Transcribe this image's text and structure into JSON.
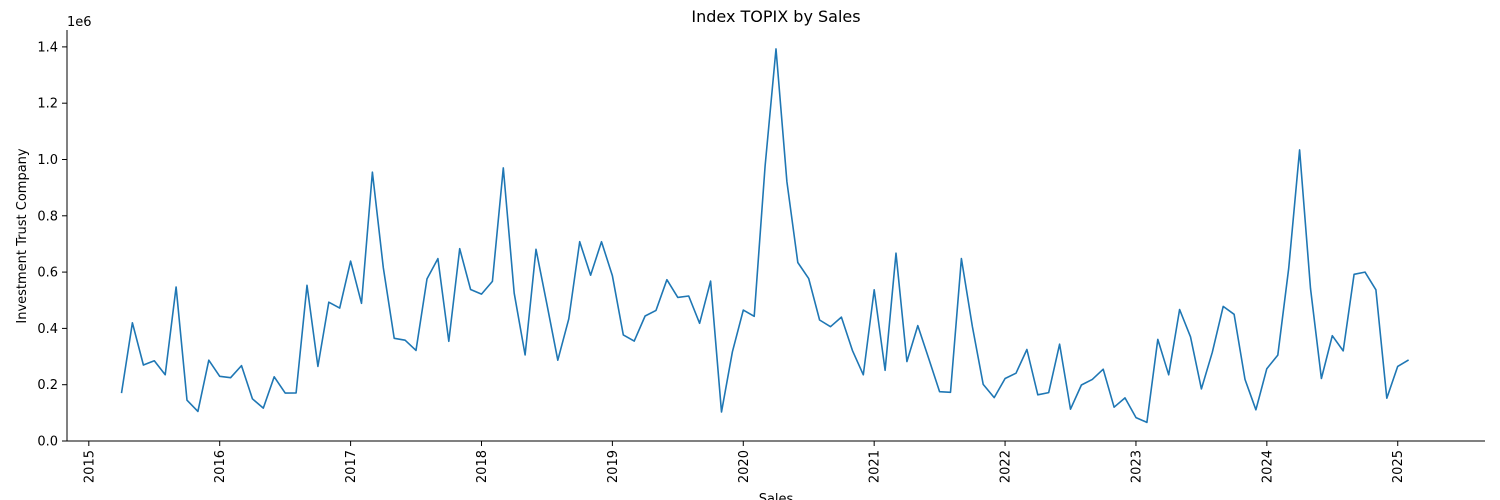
{
  "chart_data": {
    "type": "line",
    "title": "Index TOPIX by Sales",
    "xlabel": "Sales",
    "ylabel": "Investment Trust Company",
    "y_offset_label": "1e6",
    "xlim": [
      "2014-11-01",
      "2025-09-01"
    ],
    "ylim": [
      0,
      1460000
    ],
    "x_ticks": [
      "2015",
      "2016",
      "2017",
      "2018",
      "2019",
      "2020",
      "2021",
      "2022",
      "2023",
      "2024",
      "2025"
    ],
    "y_ticks": [
      "0.0",
      "0.2",
      "0.4",
      "0.6",
      "0.8",
      "1.0",
      "1.2",
      "1.4"
    ],
    "grid": false,
    "line_color": "#1f77b4",
    "series": [
      {
        "x": [
          "2015-04",
          "2015-05",
          "2015-06",
          "2015-07",
          "2015-08",
          "2015-09",
          "2015-10",
          "2015-11",
          "2015-12",
          "2016-01",
          "2016-02",
          "2016-03",
          "2016-04",
          "2016-05",
          "2016-06",
          "2016-07",
          "2016-08",
          "2016-09",
          "2016-10",
          "2016-11",
          "2016-12",
          "2017-01",
          "2017-02",
          "2017-03",
          "2017-04",
          "2017-05",
          "2017-06",
          "2017-07",
          "2017-08",
          "2017-09",
          "2017-10",
          "2017-11",
          "2017-12",
          "2018-01",
          "2018-02",
          "2018-03",
          "2018-04",
          "2018-05",
          "2018-06",
          "2018-07",
          "2018-08",
          "2018-09",
          "2018-10",
          "2018-11",
          "2018-12",
          "2019-01",
          "2019-02",
          "2019-03",
          "2019-04",
          "2019-05",
          "2019-06",
          "2019-07",
          "2019-08",
          "2019-09",
          "2019-10",
          "2019-11",
          "2019-12",
          "2020-01",
          "2020-02",
          "2020-03",
          "2020-04",
          "2020-05",
          "2020-06",
          "2020-07",
          "2020-08",
          "2020-09",
          "2020-10",
          "2020-11",
          "2020-12",
          "2021-01",
          "2021-02",
          "2021-03",
          "2021-04",
          "2021-05",
          "2021-06",
          "2021-07",
          "2021-08",
          "2021-09",
          "2021-10",
          "2021-11",
          "2021-12",
          "2022-01",
          "2022-02",
          "2022-03",
          "2022-04",
          "2022-05",
          "2022-06",
          "2022-07",
          "2022-08",
          "2022-09",
          "2022-10",
          "2022-11",
          "2022-12",
          "2023-01",
          "2023-02",
          "2023-03",
          "2023-04",
          "2023-05",
          "2023-06",
          "2023-07",
          "2023-08",
          "2023-09",
          "2023-10",
          "2023-11",
          "2023-12",
          "2024-01",
          "2024-02",
          "2024-03",
          "2024-04",
          "2024-05",
          "2024-06",
          "2024-07",
          "2024-08",
          "2024-09",
          "2024-10",
          "2024-11",
          "2024-12",
          "2025-01",
          "2025-02"
        ],
        "values": [
          170000,
          420000,
          270000,
          285000,
          235000,
          547000,
          145000,
          105000,
          287000,
          230000,
          225000,
          268000,
          150000,
          117000,
          228000,
          170000,
          171000,
          553000,
          265000,
          493000,
          472000,
          639000,
          489000,
          955000,
          616000,
          365000,
          358000,
          322000,
          576000,
          648000,
          354000,
          683000,
          538000,
          522000,
          567000,
          970000,
          525000,
          306000,
          681000,
          486000,
          287000,
          434000,
          708000,
          589000,
          708000,
          587000,
          377000,
          355000,
          444000,
          464000,
          573000,
          510000,
          515000,
          418000,
          568000,
          103000,
          317000,
          465000,
          443000,
          977000,
          1393000,
          921000,
          634000,
          577000,
          430000,
          406000,
          440000,
          322000,
          235000,
          537000,
          251000,
          667000,
          282000,
          410000,
          293000,
          175000,
          173000,
          648000,
          408000,
          201000,
          154000,
          222000,
          241000,
          325000,
          164000,
          172000,
          344000,
          113000,
          199000,
          219000,
          255000,
          120000,
          153000,
          83000,
          66000,
          361000,
          235000,
          467000,
          370000,
          185000,
          315000,
          478000,
          450000,
          219000,
          111000,
          257000,
          305000,
          613000,
          1034000,
          542000,
          222000,
          374000,
          320000,
          592000,
          600000,
          537000,
          152000,
          265000,
          288000
        ]
      }
    ]
  }
}
